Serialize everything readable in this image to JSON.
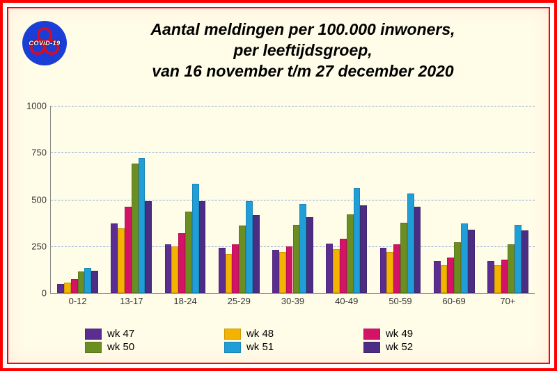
{
  "title": {
    "line1": "Aantal meldingen per 100.000 inwoners,",
    "line2": "per leeftijdsgroep,",
    "line3": "van 16 november t/m 27 december 2020",
    "fontsize": 23,
    "color": "#000000",
    "italic": true,
    "bold": true
  },
  "logo": {
    "text": "COViD-19",
    "bg_color": "#1b3fd6",
    "hazard_color": "#ff0000"
  },
  "chart": {
    "type": "grouped-bar",
    "background_color": "#fffde8",
    "grid_color": "#8aa8d8",
    "axis_color": "#888888",
    "tick_fontsize": 13,
    "ylim": [
      0,
      1000
    ],
    "ytick_step": 250,
    "yticks": [
      0,
      250,
      500,
      750,
      1000
    ],
    "categories": [
      "0-12",
      "13-17",
      "18-24",
      "25-29",
      "30-39",
      "40-49",
      "50-59",
      "60-69",
      "70+"
    ],
    "series": [
      {
        "name": "wk 47",
        "color": "#5c2d91",
        "values": [
          50,
          370,
          260,
          240,
          230,
          265,
          240,
          170,
          170
        ]
      },
      {
        "name": "wk 48",
        "color": "#f4b301",
        "values": [
          55,
          345,
          250,
          210,
          220,
          235,
          220,
          150,
          150
        ]
      },
      {
        "name": "wk 49",
        "color": "#d41367",
        "values": [
          75,
          460,
          320,
          260,
          250,
          290,
          260,
          190,
          180
        ]
      },
      {
        "name": "wk 50",
        "color": "#6b8e23",
        "values": [
          115,
          690,
          435,
          360,
          365,
          420,
          375,
          270,
          260
        ]
      },
      {
        "name": "wk 51",
        "color": "#1f9ed8",
        "values": [
          135,
          720,
          585,
          490,
          475,
          560,
          530,
          370,
          365
        ]
      },
      {
        "name": "wk 52",
        "color": "#4b2e83",
        "values": [
          120,
          490,
          490,
          415,
          405,
          470,
          460,
          340,
          335
        ]
      }
    ],
    "bar_group_width_pct": 76,
    "legend_fontsize": 15
  },
  "frame": {
    "outer_border_color": "#ff0000",
    "outer_border_width": 4,
    "inner_border_color": "#ff0000",
    "inner_border_width": 2
  }
}
